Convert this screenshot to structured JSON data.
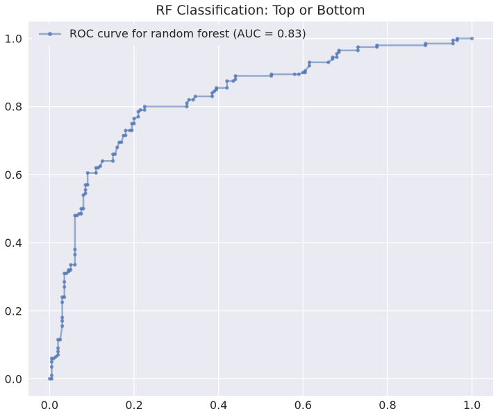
{
  "chart_data": {
    "type": "line",
    "title": "RF Classification: Top or Bottom",
    "xlabel": "",
    "ylabel": "",
    "xlim": [
      -0.05,
      1.05
    ],
    "ylim": [
      -0.05,
      1.05
    ],
    "xticks": [
      0.0,
      0.2,
      0.4,
      0.6,
      0.8,
      1.0
    ],
    "yticks": [
      0.0,
      0.2,
      0.4,
      0.6,
      0.8,
      1.0
    ],
    "tick_labels_x": [
      "0.0",
      "0.2",
      "0.4",
      "0.6",
      "0.8",
      "1.0"
    ],
    "tick_labels_y": [
      "0.0",
      "0.2",
      "0.4",
      "0.6",
      "0.8",
      "1.0"
    ],
    "grid": true,
    "legend_position": "top-left",
    "colors": {
      "background": "#eaeaf2",
      "series": "#4c72b0"
    },
    "series": [
      {
        "name": "ROC curve for random forest (AUC = 0.83)",
        "points": [
          [
            0.0,
            0.0
          ],
          [
            0.005,
            0.0
          ],
          [
            0.005,
            0.01
          ],
          [
            0.005,
            0.035
          ],
          [
            0.005,
            0.05
          ],
          [
            0.005,
            0.06
          ],
          [
            0.01,
            0.06
          ],
          [
            0.015,
            0.065
          ],
          [
            0.02,
            0.07
          ],
          [
            0.02,
            0.08
          ],
          [
            0.02,
            0.09
          ],
          [
            0.02,
            0.115
          ],
          [
            0.025,
            0.115
          ],
          [
            0.03,
            0.155
          ],
          [
            0.03,
            0.17
          ],
          [
            0.03,
            0.18
          ],
          [
            0.03,
            0.225
          ],
          [
            0.03,
            0.24
          ],
          [
            0.035,
            0.24
          ],
          [
            0.035,
            0.27
          ],
          [
            0.035,
            0.285
          ],
          [
            0.035,
            0.31
          ],
          [
            0.04,
            0.31
          ],
          [
            0.045,
            0.315
          ],
          [
            0.045,
            0.32
          ],
          [
            0.05,
            0.32
          ],
          [
            0.05,
            0.335
          ],
          [
            0.06,
            0.335
          ],
          [
            0.06,
            0.365
          ],
          [
            0.06,
            0.38
          ],
          [
            0.06,
            0.48
          ],
          [
            0.065,
            0.48
          ],
          [
            0.07,
            0.485
          ],
          [
            0.075,
            0.485
          ],
          [
            0.075,
            0.5
          ],
          [
            0.08,
            0.5
          ],
          [
            0.08,
            0.54
          ],
          [
            0.085,
            0.545
          ],
          [
            0.085,
            0.555
          ],
          [
            0.085,
            0.57
          ],
          [
            0.09,
            0.57
          ],
          [
            0.09,
            0.605
          ],
          [
            0.11,
            0.605
          ],
          [
            0.11,
            0.62
          ],
          [
            0.115,
            0.62
          ],
          [
            0.12,
            0.625
          ],
          [
            0.125,
            0.64
          ],
          [
            0.15,
            0.64
          ],
          [
            0.15,
            0.66
          ],
          [
            0.155,
            0.66
          ],
          [
            0.16,
            0.68
          ],
          [
            0.165,
            0.695
          ],
          [
            0.17,
            0.695
          ],
          [
            0.175,
            0.715
          ],
          [
            0.18,
            0.715
          ],
          [
            0.18,
            0.73
          ],
          [
            0.19,
            0.73
          ],
          [
            0.195,
            0.73
          ],
          [
            0.195,
            0.75
          ],
          [
            0.2,
            0.75
          ],
          [
            0.2,
            0.765
          ],
          [
            0.21,
            0.77
          ],
          [
            0.21,
            0.785
          ],
          [
            0.215,
            0.79
          ],
          [
            0.225,
            0.79
          ],
          [
            0.225,
            0.8
          ],
          [
            0.325,
            0.8
          ],
          [
            0.325,
            0.81
          ],
          [
            0.33,
            0.82
          ],
          [
            0.34,
            0.82
          ],
          [
            0.345,
            0.83
          ],
          [
            0.385,
            0.83
          ],
          [
            0.385,
            0.84
          ],
          [
            0.39,
            0.845
          ],
          [
            0.395,
            0.85
          ],
          [
            0.395,
            0.855
          ],
          [
            0.42,
            0.855
          ],
          [
            0.42,
            0.875
          ],
          [
            0.435,
            0.875
          ],
          [
            0.44,
            0.88
          ],
          [
            0.44,
            0.89
          ],
          [
            0.525,
            0.89
          ],
          [
            0.525,
            0.895
          ],
          [
            0.58,
            0.895
          ],
          [
            0.59,
            0.895
          ],
          [
            0.6,
            0.9
          ],
          [
            0.605,
            0.9
          ],
          [
            0.605,
            0.905
          ],
          [
            0.615,
            0.92
          ],
          [
            0.615,
            0.93
          ],
          [
            0.66,
            0.93
          ],
          [
            0.67,
            0.94
          ],
          [
            0.67,
            0.945
          ],
          [
            0.68,
            0.945
          ],
          [
            0.68,
            0.955
          ],
          [
            0.685,
            0.96
          ],
          [
            0.685,
            0.965
          ],
          [
            0.73,
            0.965
          ],
          [
            0.73,
            0.975
          ],
          [
            0.775,
            0.975
          ],
          [
            0.775,
            0.98
          ],
          [
            0.89,
            0.98
          ],
          [
            0.89,
            0.985
          ],
          [
            0.955,
            0.985
          ],
          [
            0.955,
            0.995
          ],
          [
            0.965,
            0.995
          ],
          [
            0.965,
            1.0
          ],
          [
            1.0,
            1.0
          ]
        ]
      }
    ]
  }
}
